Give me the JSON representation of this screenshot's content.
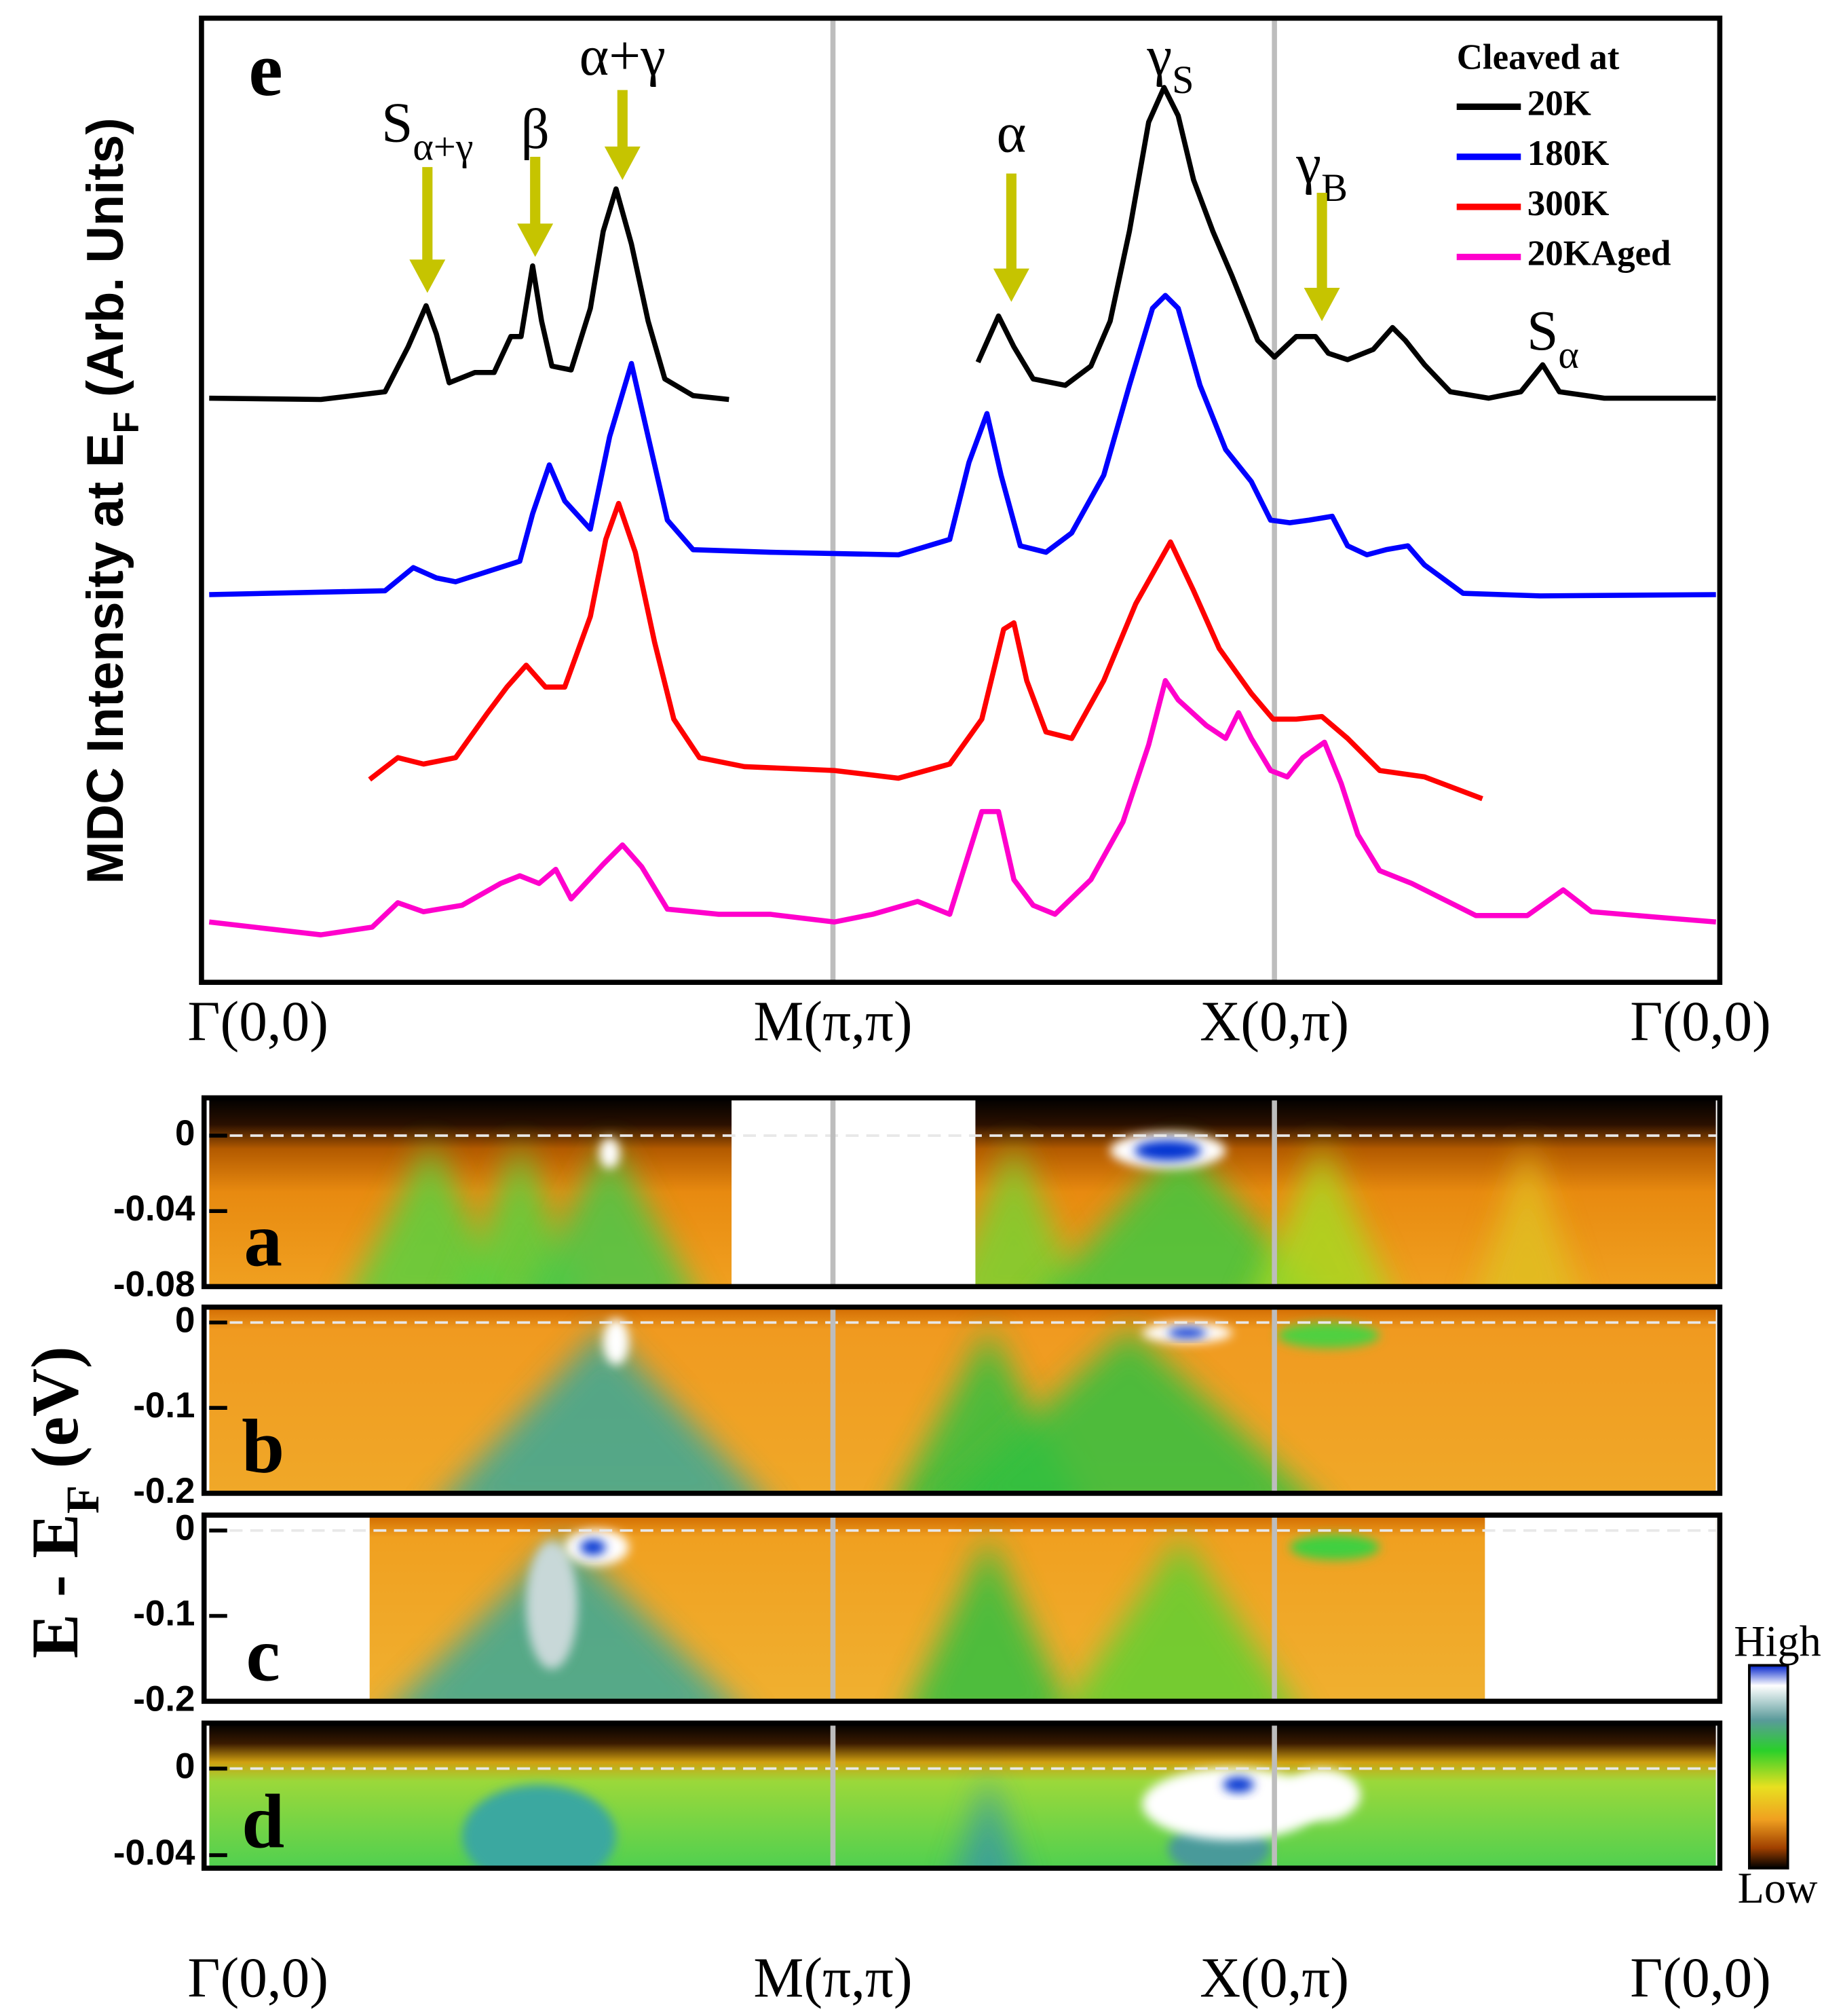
{
  "chart_data": [
    {
      "type": "line",
      "panel_label": "e",
      "ylabel": {
        "text": "MDC Intensity at E",
        "sub": "F",
        "after": " (Arb. Units)"
      },
      "xlim": [
        0,
        1174
      ],
      "ylim": [
        0,
        751
      ],
      "xticks": [
        {
          "value": 0,
          "label": "Γ(0,0)"
        },
        {
          "value": 486,
          "label": "M(π,π)"
        },
        {
          "value": 830,
          "label": "X(0,π)"
        },
        {
          "value": 1174,
          "label": "Γ(0,0)"
        }
      ],
      "grid": true,
      "legend": {
        "title": "Cleaved at",
        "position": "upper right"
      },
      "series": [
        {
          "name": "20K",
          "color": "#000000",
          "x": [
            0,
            87,
            137,
            155,
            169,
            177,
            187,
            207,
            222,
            235,
            243,
            252,
            259,
            267,
            282,
            297,
            307,
            317,
            329,
            342,
            355,
            377,
            405,
            502,
            599,
            615,
            627,
            642,
            667,
            687,
            702,
            717,
            732,
            744,
            755,
            767,
            782,
            797,
            817,
            830,
            847,
            862,
            872,
            887,
            907,
            922,
            932,
            947,
            967,
            997,
            1022,
            1039,
            1052,
            1087,
            1174
          ],
          "values": [
            455,
            454,
            460,
            495,
            527,
            505,
            467,
            475,
            475,
            503,
            503,
            558,
            515,
            480,
            477,
            525,
            585,
            618,
            575,
            515,
            470,
            457,
            454,
            null,
            483,
            519,
            495,
            470,
            465,
            480,
            515,
            585,
            670,
            697,
            675,
            625,
            585,
            550,
            500,
            487,
            503,
            503,
            490,
            485,
            493,
            510,
            500,
            481,
            460,
            455,
            460,
            481,
            460,
            455,
            455
          ]
        },
        {
          "name": "180K",
          "color": "#0000ff",
          "x": [
            0,
            137,
            159,
            177,
            192,
            217,
            242,
            252,
            265,
            277,
            297,
            312,
            329,
            342,
            357,
            377,
            437,
            537,
            577,
            592,
            606,
            617,
            632,
            652,
            672,
            697,
            717,
            735,
            745,
            755,
            772,
            792,
            812,
            827,
            842,
            857,
            875,
            887,
            902,
            917,
            934,
            947,
            977,
            1037,
            1174
          ],
          "values": [
            302,
            305,
            323,
            315,
            312,
            320,
            328,
            365,
            403,
            375,
            353,
            425,
            482,
            425,
            360,
            337,
            335,
            333,
            345,
            405,
            443,
            395,
            340,
            335,
            350,
            395,
            465,
            525,
            535,
            525,
            465,
            415,
            390,
            360,
            358,
            360,
            363,
            340,
            333,
            337,
            340,
            325,
            303,
            301,
            302
          ]
        },
        {
          "name": "300K",
          "color": "#ff0000",
          "x": [
            125,
            147,
            167,
            192,
            217,
            232,
            247,
            262,
            277,
            297,
            309,
            319,
            332,
            347,
            362,
            382,
            417,
            487,
            537,
            577,
            602,
            619,
            627,
            637,
            652,
            672,
            697,
            722,
            749,
            767,
            787,
            812,
            829,
            847,
            867,
            887,
            912,
            947,
            992
          ],
          "values": [
            158,
            175,
            170,
            175,
            210,
            230,
            247,
            230,
            230,
            285,
            345,
            373,
            335,
            265,
            205,
            175,
            168,
            165,
            159,
            170,
            205,
            275,
            280,
            235,
            195,
            190,
            235,
            295,
            343,
            305,
            260,
            225,
            205,
            205,
            207,
            190,
            165,
            160,
            143
          ]
        },
        {
          "name": "20KAged",
          "color": "#ff00cc",
          "x": [
            0,
            87,
            127,
            147,
            167,
            197,
            227,
            242,
            257,
            270,
            282,
            307,
            322,
            337,
            357,
            397,
            437,
            487,
            517,
            552,
            577,
            602,
            615,
            627,
            642,
            659,
            687,
            712,
            732,
            745,
            755,
            777,
            792,
            802,
            812,
            827,
            840,
            852,
            869,
            882,
            895,
            912,
            937,
            987,
            1027,
            1055,
            1077,
            1137,
            1174
          ],
          "values": [
            47,
            37,
            43,
            62,
            55,
            60,
            77,
            83,
            77,
            88,
            65,
            92,
            107,
            90,
            57,
            53,
            53,
            47,
            53,
            63,
            53,
            133,
            133,
            80,
            60,
            53,
            80,
            125,
            185,
            235,
            220,
            200,
            190,
            210,
            190,
            165,
            160,
            175,
            187,
            155,
            115,
            87,
            77,
            52,
            52,
            72,
            55,
            50,
            47
          ]
        }
      ],
      "annotations": [
        {
          "text": "S",
          "sub": "α+γ"
        },
        {
          "text": "β"
        },
        {
          "text": "α+γ"
        },
        {
          "text": "α"
        },
        {
          "text": "γ",
          "sub": "S"
        },
        {
          "text": "γ",
          "sub": "B"
        },
        {
          "text": "S",
          "sub": "α"
        }
      ]
    },
    {
      "type": "heatmap",
      "panel_label": "a",
      "ylim": [
        -0.08,
        0.02
      ],
      "yticks": [
        0,
        -0.04,
        -0.08
      ]
    },
    {
      "type": "heatmap",
      "panel_label": "b",
      "ylim": [
        -0.2,
        0.018
      ],
      "yticks": [
        0,
        -0.1,
        -0.2
      ]
    },
    {
      "type": "heatmap",
      "panel_label": "c",
      "ylim": [
        -0.2,
        0.018
      ],
      "yticks": [
        0,
        -0.1,
        -0.2
      ]
    },
    {
      "type": "heatmap",
      "panel_label": "d",
      "ylim": [
        -0.046,
        0.021
      ],
      "yticks": [
        0,
        -0.04
      ]
    }
  ],
  "energy_axis_label": {
    "text": "E - E",
    "sub": "F",
    "after": " (eV)"
  },
  "colorbar": {
    "high": "High",
    "low": "Low"
  }
}
